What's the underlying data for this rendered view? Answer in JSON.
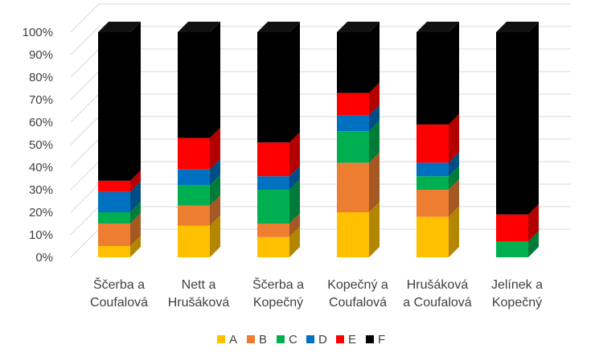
{
  "chart_data": {
    "type": "bar",
    "stacked": true,
    "percent_stacked": true,
    "style": "3d-column",
    "categories": [
      [
        "Ščerba a",
        "Coufalová"
      ],
      [
        "Nett a",
        "Hrušáková"
      ],
      [
        "Ščerba a",
        "Kopečný"
      ],
      [
        "Kopečný a",
        "Coufalová"
      ],
      [
        "Hrušáková",
        "a Coufalová"
      ],
      [
        "Jelínek a",
        "Kopečný"
      ]
    ],
    "series": [
      {
        "name": "A",
        "color": "#FFC000",
        "values": [
          5,
          14,
          9,
          20,
          18,
          0
        ]
      },
      {
        "name": "B",
        "color": "#ED7D31",
        "values": [
          10,
          9,
          6,
          22,
          12,
          0
        ]
      },
      {
        "name": "C",
        "color": "#00B050",
        "values": [
          5,
          9,
          15,
          14,
          6,
          7
        ]
      },
      {
        "name": "D",
        "color": "#0070C0",
        "values": [
          9,
          7,
          6,
          7,
          6,
          0
        ]
      },
      {
        "name": "E",
        "color": "#FF0000",
        "values": [
          5,
          14,
          15,
          10,
          17,
          12
        ]
      },
      {
        "name": "F",
        "color": "#000000",
        "values": [
          66,
          47,
          49,
          27,
          41,
          81
        ]
      }
    ],
    "y_ticks": [
      "0%",
      "10%",
      "20%",
      "30%",
      "40%",
      "50%",
      "60%",
      "70%",
      "80%",
      "90%",
      "100%"
    ],
    "ylim": [
      0,
      100
    ],
    "grid": true,
    "legend_position": "bottom"
  }
}
